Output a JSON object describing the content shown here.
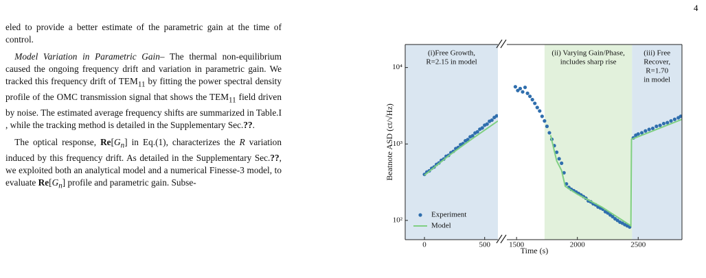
{
  "page_number": "4",
  "text": {
    "paragraphs": [
      [
        "eled to provide a better estimate of the parametric gain at the time of control."
      ],
      [
        "Model Variation in Parametric Gain–",
        " The thermal non-equilibrium caused the ongoing frequency drift and variation in parametric gain. We tracked this frequency drift of TEM",
        "11",
        " by fitting the power spectral density profile of the OMC transmission signal that shows the TEM",
        "11",
        " field driven by noise. The estimated average frequency shifts are summarized in Table.I , while the tracking method is detailed in the Supplementary Sec.",
        "??",
        "."
      ],
      [
        "The optical response, ",
        "Re",
        "[",
        "G",
        "n",
        "] in Eq.(1), characterizes the ",
        "R",
        " variation induced by this frequency drift. As detailed in the Supplementary Sec.",
        "??",
        ", we exploited both an analytical model and a numerical Finesse-3 model, to evaluate ",
        "Re",
        "[",
        "G",
        "n",
        "] profile and parametric gain. Subse-"
      ]
    ]
  },
  "chart_data": [
    {
      "type": "scatter",
      "ylabel": "Beatnote ASD (ct/√Hz)",
      "log_y": true,
      "xlim": [
        -160,
        610
      ],
      "xticks": [
        0,
        500
      ],
      "ylim": [
        56,
        20000
      ],
      "yticks": [
        {
          "value": 100,
          "label": "10²"
        },
        {
          "value": 1000,
          "label": "10³"
        },
        {
          "value": 10000,
          "label": "10⁴"
        }
      ],
      "legend": "lower left",
      "spans": [
        {
          "x0": -160,
          "x1": 610,
          "color": "#dae6f1",
          "label": [
            "(i)Free Growth,",
            "R=2.15 in model"
          ]
        }
      ],
      "series": [
        {
          "name": "Experiment",
          "type": "scatter",
          "color": "#2f6ead",
          "x": [
            0,
            20,
            40,
            60,
            80,
            100,
            120,
            140,
            160,
            180,
            200,
            220,
            240,
            260,
            280,
            300,
            320,
            340,
            360,
            380,
            400,
            420,
            440,
            460,
            480,
            500,
            520,
            540,
            560,
            580,
            600
          ],
          "values": [
            400,
            430,
            445,
            480,
            500,
            540,
            565,
            610,
            635,
            690,
            710,
            770,
            800,
            870,
            900,
            980,
            1010,
            1100,
            1140,
            1240,
            1280,
            1390,
            1440,
            1560,
            1620,
            1760,
            1820,
            1980,
            2050,
            2220,
            2330
          ]
        },
        {
          "name": "Model",
          "type": "line",
          "color": "#7fcf82",
          "x": [
            0,
            200,
            400,
            610
          ],
          "values": [
            390,
            700,
            1180,
            2000
          ]
        }
      ]
    },
    {
      "type": "scatter",
      "xlabel": "Time (s)",
      "log_y": true,
      "xlim": [
        1420,
        2860
      ],
      "xticks": [
        1500,
        2000,
        2500
      ],
      "ylim": [
        56,
        20000
      ],
      "spans": [
        {
          "x0": 1730,
          "x1": 2450,
          "color": "#e2f1dc",
          "label": [
            "(ii) Varying Gain/Phase,",
            "includes sharp rise"
          ]
        },
        {
          "x0": 2450,
          "x1": 2860,
          "color": "#dae6f1",
          "label": [
            "(iii) Free",
            "Recover,",
            "R=1.70",
            "in model"
          ]
        }
      ],
      "series": [
        {
          "type": "scatter",
          "color": "#2f6ead",
          "x": [
            1490,
            1510,
            1530,
            1550,
            1570,
            1590,
            1610,
            1630,
            1650,
            1670,
            1690,
            1710,
            1730,
            1750,
            1770,
            1790,
            1810,
            1830,
            1850,
            1870,
            1890,
            1910,
            1930,
            1950,
            1970,
            1990,
            2010,
            2030,
            2050,
            2070,
            2090,
            2110,
            2130,
            2150,
            2170,
            2190,
            2210,
            2230,
            2250,
            2270,
            2290,
            2310,
            2330,
            2350,
            2370,
            2390,
            2410,
            2430,
            2460,
            2480,
            2500,
            2530,
            2560,
            2590,
            2620,
            2650,
            2680,
            2710,
            2740,
            2770,
            2800,
            2830,
            2850
          ],
          "values": [
            5600,
            5000,
            5300,
            4800,
            5500,
            4600,
            4200,
            3800,
            3400,
            3000,
            2700,
            2300,
            2000,
            1700,
            1400,
            1150,
            950,
            780,
            640,
            560,
            420,
            300,
            270,
            255,
            245,
            235,
            225,
            215,
            205,
            195,
            180,
            175,
            165,
            160,
            150,
            145,
            140,
            130,
            125,
            118,
            112,
            105,
            100,
            95,
            92,
            88,
            85,
            82,
            1200,
            1300,
            1350,
            1400,
            1480,
            1550,
            1600,
            1700,
            1750,
            1850,
            1900,
            2000,
            2100,
            2200,
            2300
          ]
        },
        {
          "type": "line",
          "color": "#7fcf82",
          "x": [
            1780,
            1800,
            1830,
            1870,
            1900,
            2000,
            2200,
            2440,
            2445,
            2860
          ],
          "values": [
            1300,
            950,
            600,
            450,
            280,
            220,
            150,
            85,
            1150,
            2100
          ]
        }
      ]
    }
  ]
}
